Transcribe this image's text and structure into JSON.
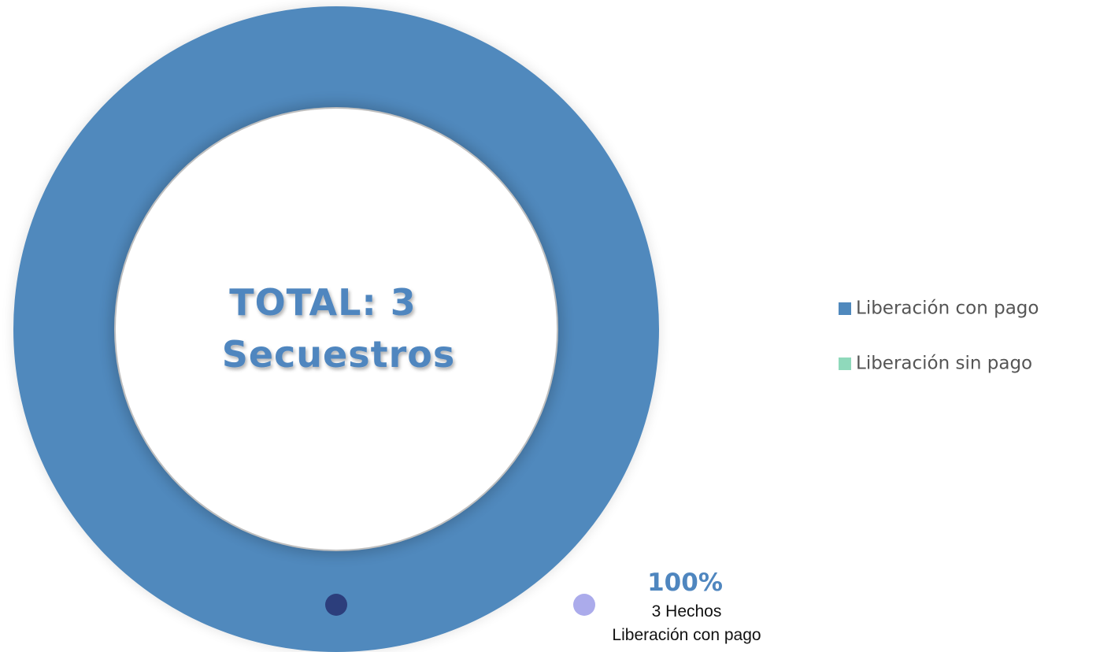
{
  "chart_data": {
    "type": "pie",
    "center_text": [
      "TOTAL: 3",
      "Secuestros"
    ],
    "categories": [
      "Liberación con pago",
      "Liberación sin pago"
    ],
    "values": [
      100,
      0
    ],
    "value_labels": [
      "100%",
      null
    ],
    "colors": [
      "#5089bd",
      "#8fd9bb"
    ],
    "callout_detail": "3 Hechos",
    "legend": "right"
  }
}
